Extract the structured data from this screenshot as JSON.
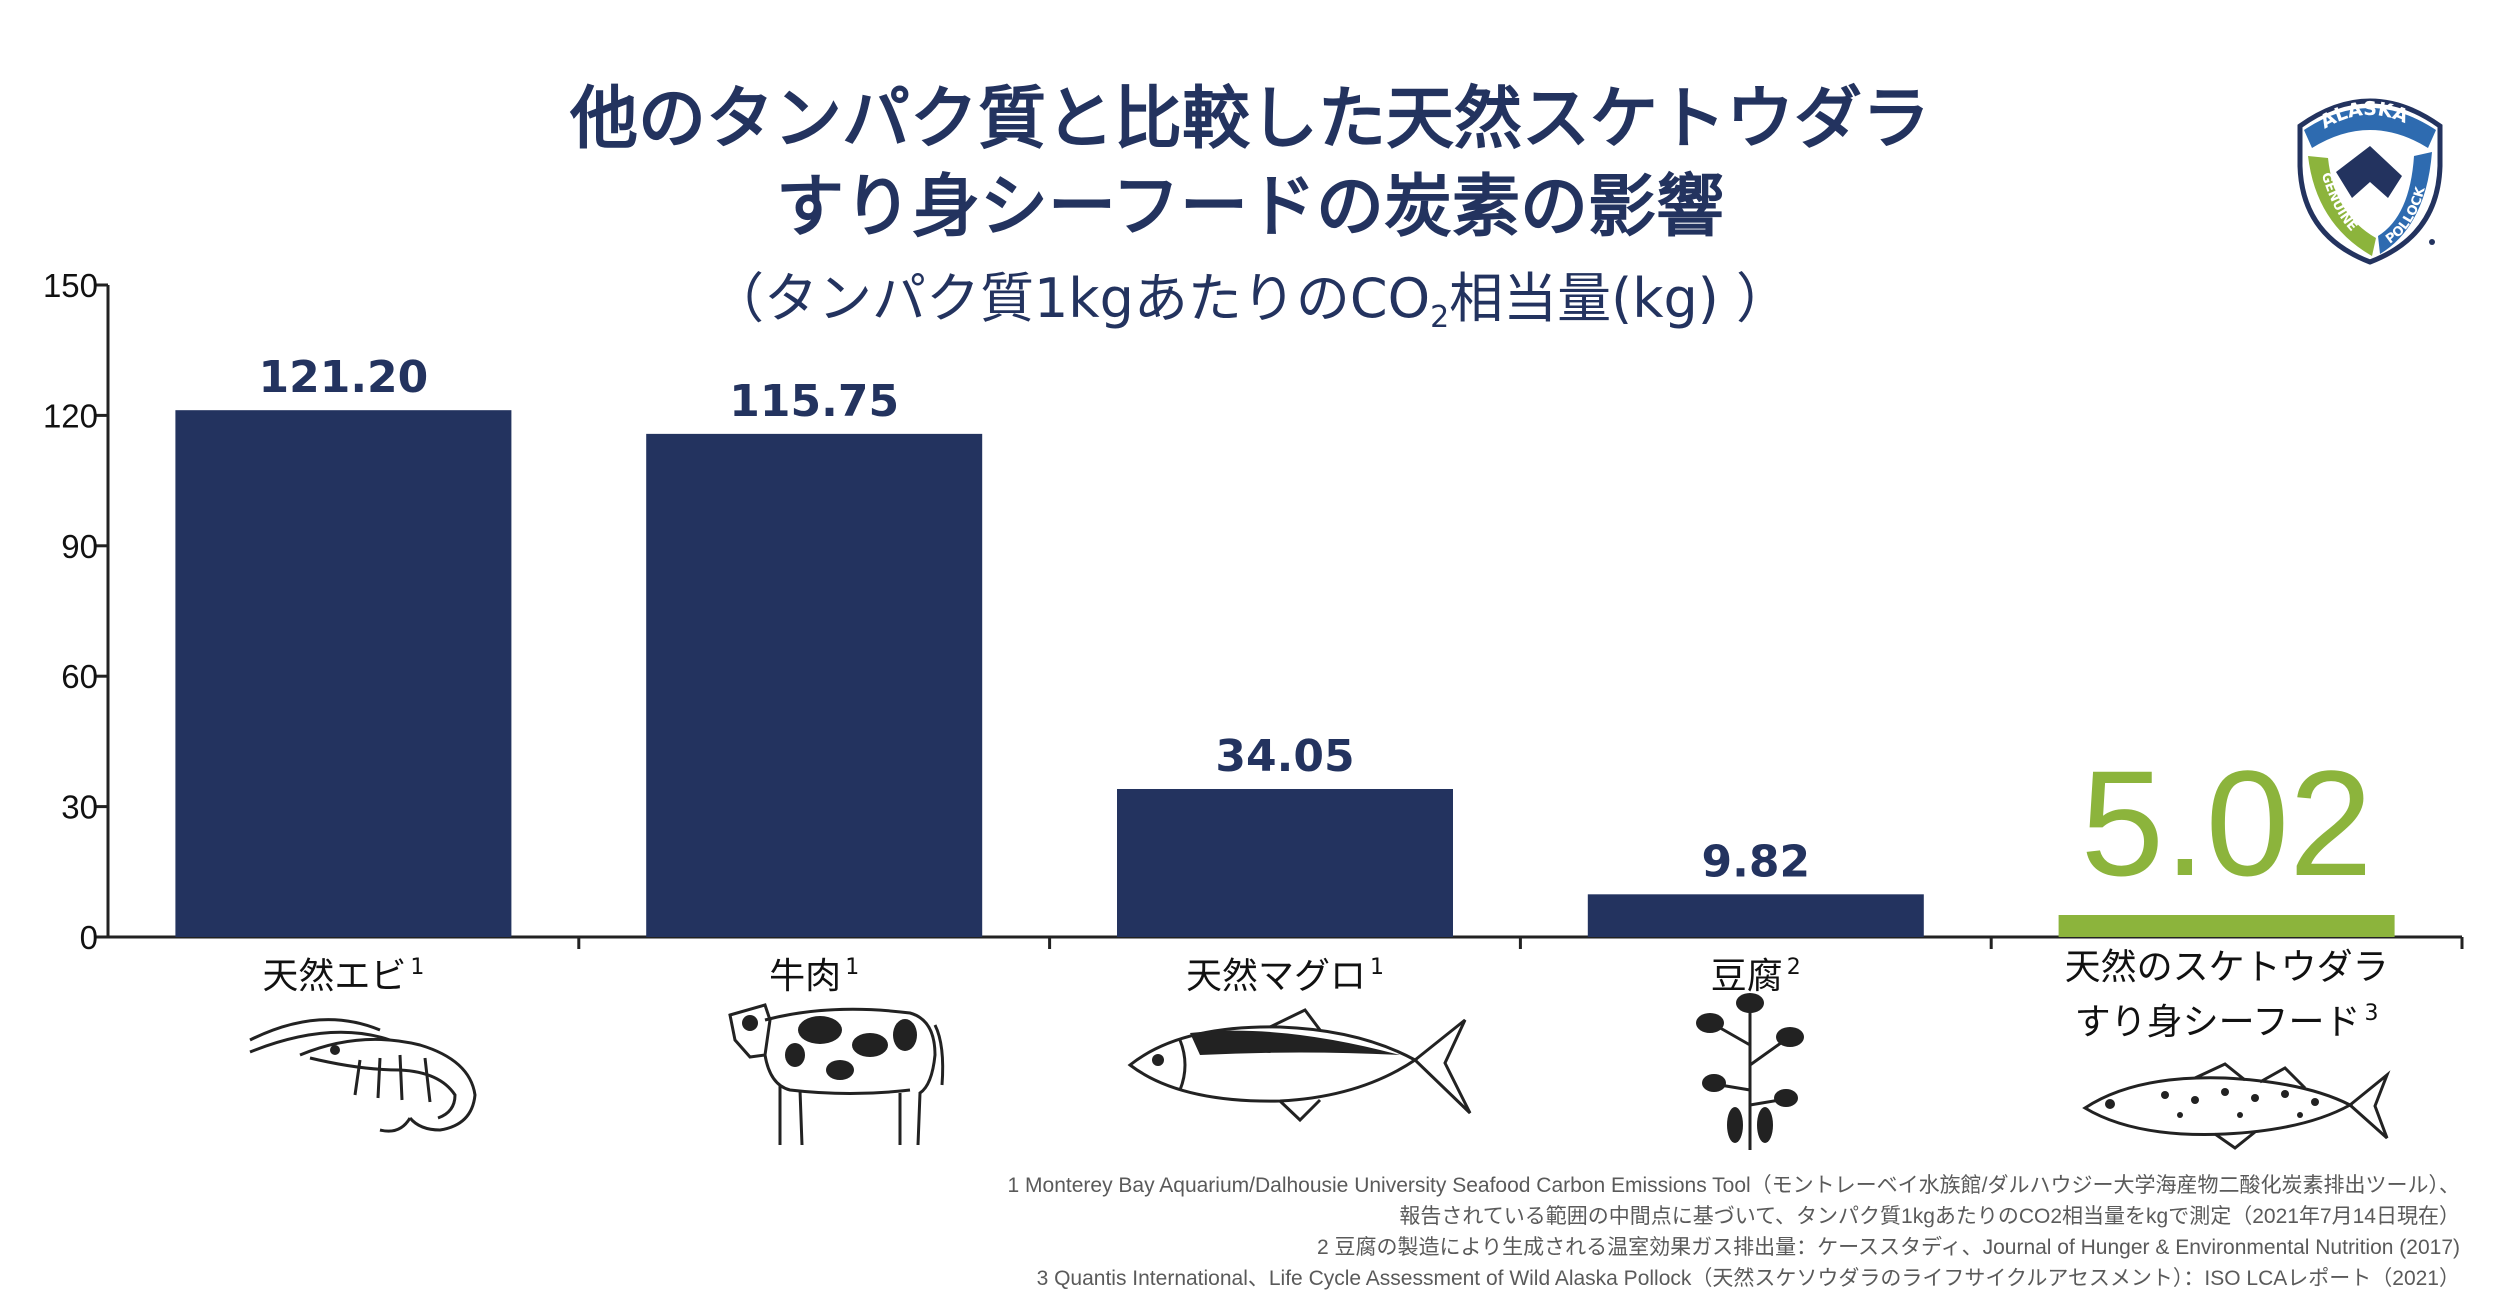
{
  "title_line1": "他のタンパク質と比較した天然スケトウダラ",
  "title_line2": "すり身シーフードの炭素の影響",
  "subtitle_pre": "（タンパク質1kgあたりのCO",
  "subtitle_sub": "2",
  "subtitle_post": "相当量(kg) ）",
  "logo": {
    "top_text": "ALASKA",
    "left_text": "GENUINE",
    "right_text": "POLLOCK",
    "colors": {
      "navy": "#23335f",
      "blue": "#2e6bb0",
      "green": "#8cb43c"
    }
  },
  "chart_data": {
    "type": "bar",
    "categories": [
      "天然エビ",
      "牛肉",
      "天然マグロ",
      "豆腐",
      "天然のスケトウダラすり身シーフード"
    ],
    "values": [
      121.2,
      115.75,
      34.05,
      9.82,
      5.02
    ],
    "value_labels": [
      "121.20",
      "115.75",
      "34.05",
      "9.82",
      "5.02"
    ],
    "ylim": [
      0,
      150
    ],
    "yticks": [
      0,
      30,
      60,
      90,
      120,
      150
    ],
    "grid": false,
    "colors": {
      "bar": "#23335f",
      "highlight": "#8cb43c",
      "axis": "#222222"
    },
    "highlight_index": 4
  },
  "categories": [
    {
      "label": "天然エビ",
      "sup": "1",
      "icon": "shrimp-icon"
    },
    {
      "label": "牛肉",
      "sup": "1",
      "icon": "cow-icon"
    },
    {
      "label": "天然マグロ",
      "sup": "1",
      "icon": "tuna-icon"
    },
    {
      "label": "豆腐",
      "sup": "2",
      "icon": "soybean-plant-icon"
    },
    {
      "label_line1": "天然のスケトウダラ",
      "label_line2": "すり身シーフード",
      "sup": "3",
      "icon": "pollock-icon"
    }
  ],
  "footnotes": [
    "1 Monterey Bay Aquarium/Dalhousie University Seafood Carbon Emissions Tool（モントレーベイ水族館/ダルハウジー大学海産物二酸化炭素排出ツール）、",
    "報告されている範囲の中間点に基づいて、タンパク質1kgあたりのCO2相当量をkgで測定（2021年7月14日現在）",
    "2 豆腐の製造により生成される温室効果ガス排出量：ケーススタディ、Journal of Hunger & Environmental Nutrition (2017)",
    "3 Quantis International、Life Cycle Assessment of Wild Alaska Pollock（天然スケソウダラのライフサイクルアセスメント）：ISO LCAレポート（2021）"
  ]
}
